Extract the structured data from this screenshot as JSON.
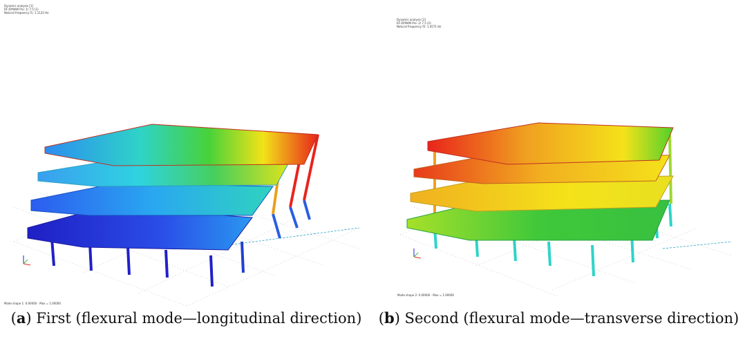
{
  "panels": [
    {
      "id": "a",
      "letter": "a",
      "caption_pre": "(",
      "caption_post": ") First (flexural mode—longitudinal direction)",
      "header_lines": [
        "Dynamic analysis [1]",
        "RF-DYNAM Pro: 1/ 7.5 (1)",
        "Natural frequency f1: 1.1122 Hz"
      ],
      "footer": "Mode shape 1: 0.00000 - Max = 1.00000"
    },
    {
      "id": "b",
      "letter": "b",
      "caption_pre": "(",
      "caption_post": ") Second (flexural mode—transverse direction)",
      "header_lines": [
        "Dynamic analysis [2]",
        "RF-DYNAM Pro: 2/ 7.5 (2)",
        "Natural frequency f2: 1.4571 Hz"
      ],
      "footer": "Mode shape 2: 0.00000 - Max = 1.00000"
    }
  ],
  "colors": {
    "red": "#e8241b",
    "orange": "#f0a020",
    "yellow": "#f4e21a",
    "green": "#33c23a",
    "cyan": "#2fd3e0",
    "blue": "#2e86f0",
    "darkblue": "#2020c8"
  }
}
